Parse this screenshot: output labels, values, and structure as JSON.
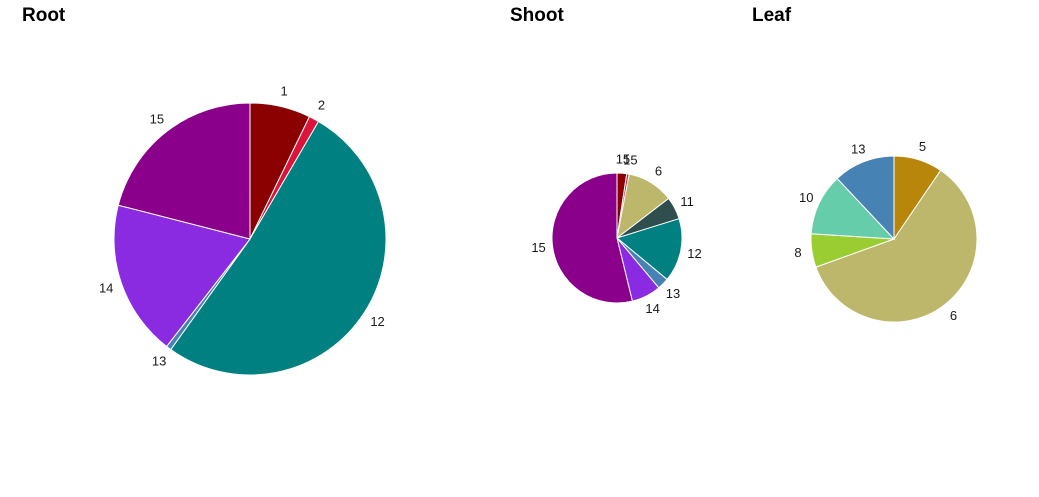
{
  "chart_data": [
    {
      "type": "pie",
      "title": "Root",
      "categories": [
        "1",
        "2",
        "12",
        "13",
        "14",
        "15"
      ],
      "values": [
        7.2,
        1.2,
        51.5,
        0.6,
        18.5,
        21.0
      ],
      "colors": [
        "#8B0000",
        "#DC143C",
        "#008080",
        "#4682B4",
        "#8A2BE2",
        "#8B008B"
      ],
      "start": "12 o'clock",
      "direction": "clockwise"
    },
    {
      "type": "pie",
      "title": "Shoot",
      "categories": [
        "15",
        "15",
        "6",
        "11",
        "12",
        "13",
        "14",
        "15"
      ],
      "values": [
        2.4,
        0.6,
        11.6,
        5.6,
        15.8,
        2.9,
        7.3,
        53.8
      ],
      "colors": [
        "#8B0000",
        "#DC143C",
        "#BDB76B",
        "#2F4F4F",
        "#008080",
        "#4682B4",
        "#8A2BE2",
        "#8B008B"
      ],
      "start": "12 o'clock",
      "direction": "clockwise"
    },
    {
      "type": "pie",
      "title": "Leaf",
      "categories": [
        "5",
        "6",
        "8",
        "10",
        "13"
      ],
      "values": [
        9.5,
        60.0,
        6.5,
        12.0,
        12.0
      ],
      "colors": [
        "#B8860B",
        "#BDB76B",
        "#9ACD32",
        "#66CDAA",
        "#4682B4"
      ],
      "start": "12 o'clock",
      "direction": "clockwise"
    }
  ]
}
